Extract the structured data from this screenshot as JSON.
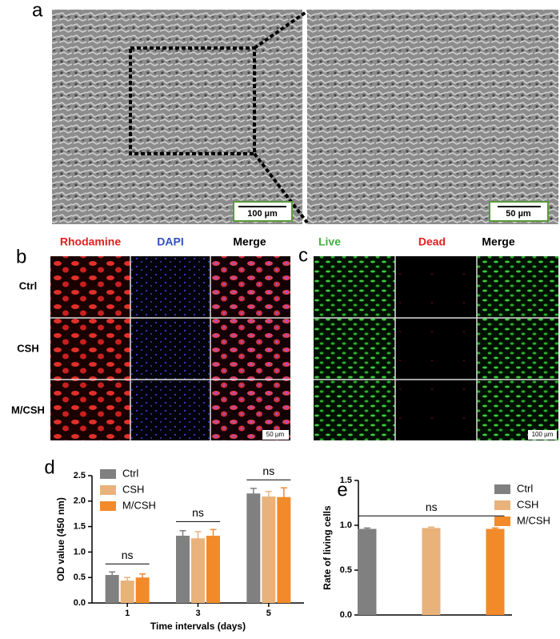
{
  "panels": {
    "a": {
      "label": "a",
      "scale_bars": [
        "100 µm",
        "50 µm"
      ]
    },
    "b": {
      "label": "b",
      "columns": [
        "Rhodamine",
        "DAPI",
        "Merge"
      ],
      "rows": [
        "Ctrl",
        "CSH",
        "M/CSH"
      ],
      "scale_bar": "50 µm"
    },
    "c": {
      "label": "c",
      "columns": [
        "Live",
        "Dead",
        "Merge"
      ],
      "scale_bar": "100 µm"
    }
  },
  "chart_data": [
    {
      "type": "bar",
      "panel_label": "d",
      "ylabel": "OD value (450 nm)",
      "xlabel": "Time intervals (days)",
      "categories": [
        "1",
        "3",
        "5"
      ],
      "series": [
        {
          "name": "Ctrl",
          "color": "#808080",
          "values": [
            0.55,
            1.32,
            2.15
          ],
          "errors": [
            0.06,
            0.1,
            0.1
          ]
        },
        {
          "name": "CSH",
          "color": "#e8b27a",
          "values": [
            0.44,
            1.27,
            2.09
          ],
          "errors": [
            0.06,
            0.13,
            0.1
          ]
        },
        {
          "name": "M/CSH",
          "color": "#f28a2a",
          "values": [
            0.5,
            1.32,
            2.08
          ],
          "errors": [
            0.07,
            0.12,
            0.18
          ]
        }
      ],
      "ylim": [
        0,
        2.5
      ],
      "yticks": [
        {
          "value": 0,
          "label": "0.0"
        },
        0.5,
        {
          "value": 1,
          "label": "1.0"
        },
        1.5,
        {
          "value": 2,
          "label": "2.0"
        },
        2.5
      ],
      "annotations": [
        "ns",
        "ns",
        "ns"
      ],
      "legend": "upper left"
    },
    {
      "type": "bar",
      "panel_label": "e",
      "ylabel": "Rate of living cells",
      "series": [
        {
          "name": "Ctrl",
          "color": "#808080",
          "values": [
            0.96
          ],
          "errors": [
            0.01
          ]
        },
        {
          "name": "CSH",
          "color": "#e8b27a",
          "values": [
            0.97
          ],
          "errors": [
            0.01
          ]
        },
        {
          "name": "M/CSH",
          "color": "#f28a2a",
          "values": [
            0.96
          ],
          "errors": [
            0.01
          ]
        }
      ],
      "ylim": [
        0,
        1.5
      ],
      "yticks": [
        {
          "value": 0,
          "label": "0.0"
        },
        0.5,
        {
          "value": 1,
          "label": "1.0"
        },
        1.5
      ],
      "annotations": [
        "ns"
      ],
      "legend": "right"
    }
  ]
}
